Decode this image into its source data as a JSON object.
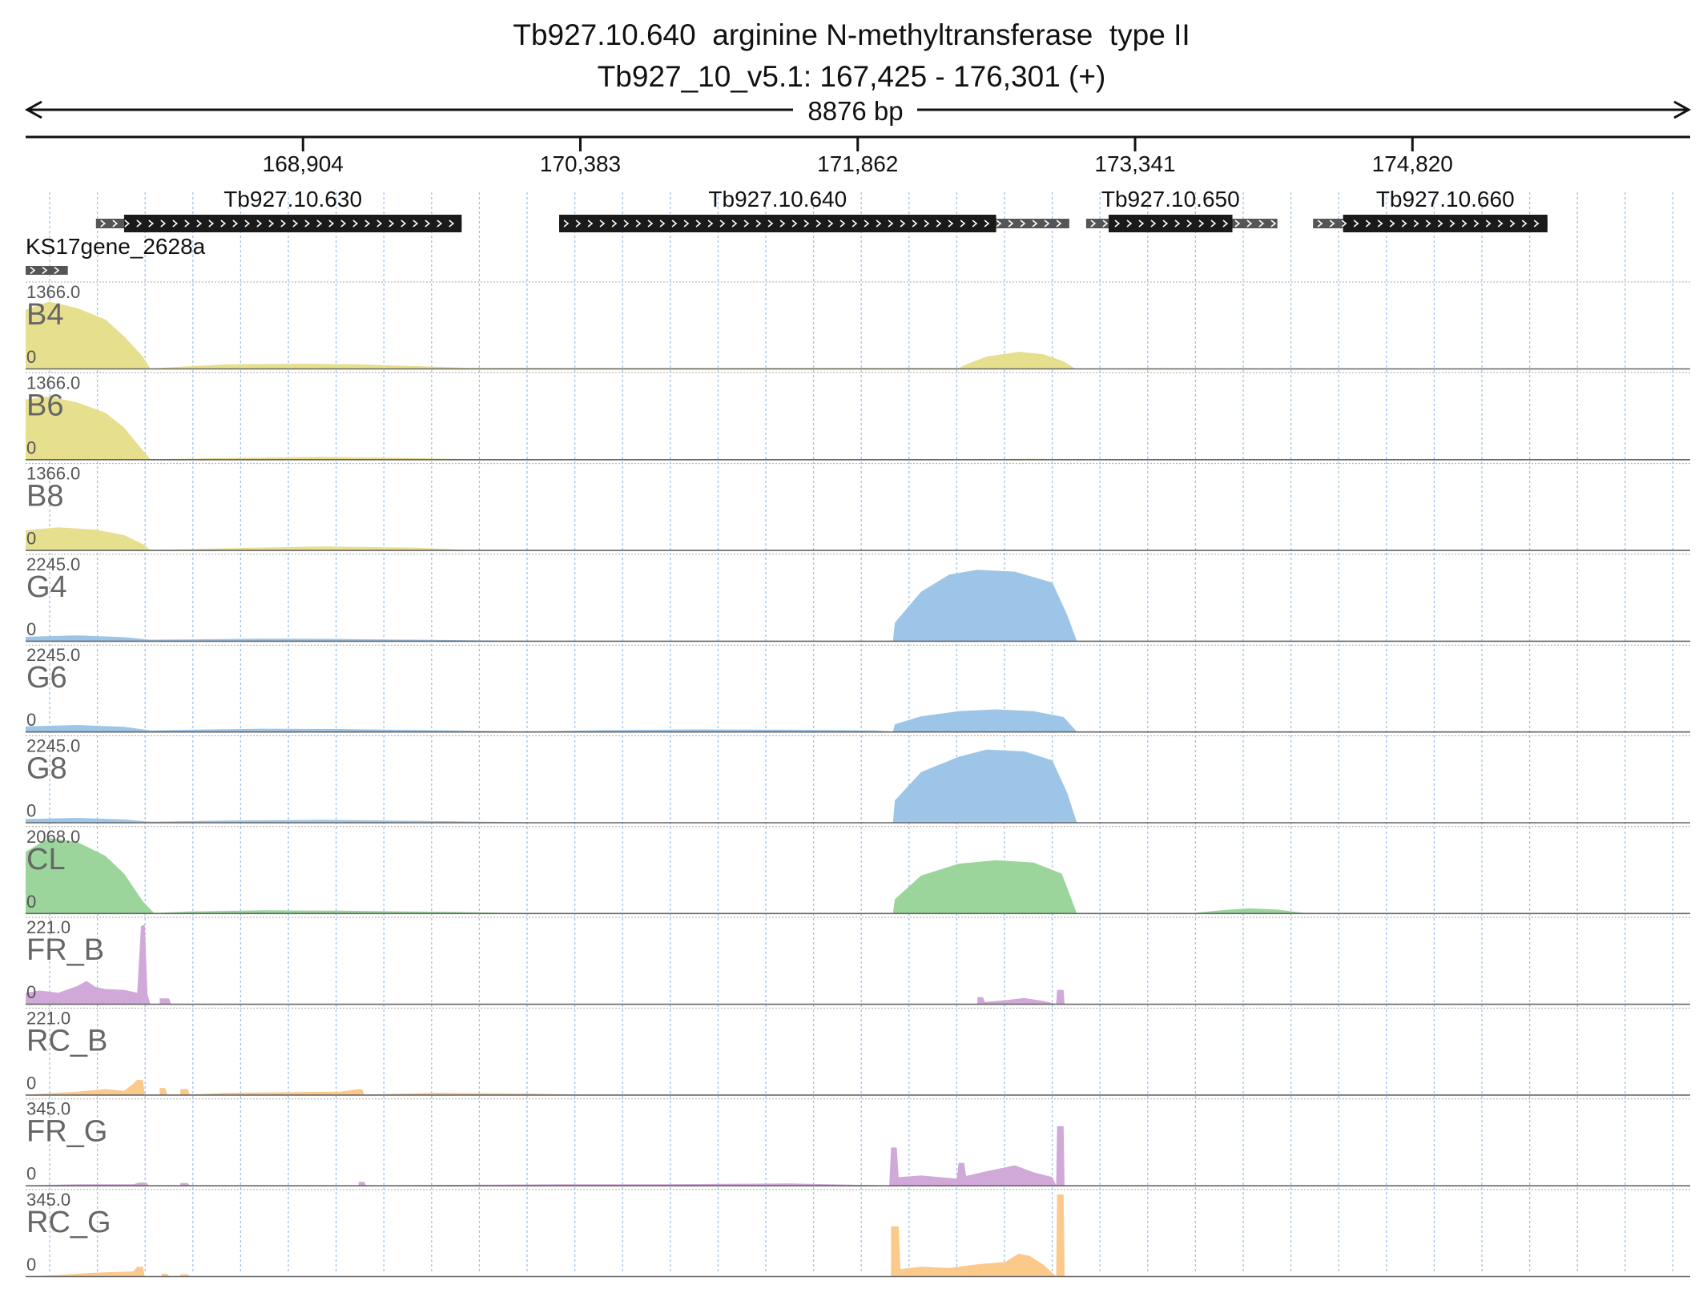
{
  "header": {
    "title": "Tb927.10.640  arginine N-methyltransferase  type II",
    "locus": "Tb927_10_v5.1: 167,425 - 176,301 (+)"
  },
  "chart_data": {
    "type": "area",
    "region": {
      "chrom": "Tb927_10_v5.1",
      "start": 167425,
      "end": 176301,
      "strand": "+",
      "span_label": "8876 bp"
    },
    "ruler": {
      "ticks": [
        168904,
        170383,
        171862,
        173341,
        174820
      ],
      "tick_labels": [
        "168,904",
        "170,383",
        "171,862",
        "173,341",
        "174,820"
      ]
    },
    "genes": [
      {
        "name": "KS17gene_2628a",
        "start": 167425,
        "end": 167650,
        "cds": null
      },
      {
        "name": "Tb927.10.630",
        "start": 167800,
        "end": 169750,
        "cds": [
          167950,
          169750
        ]
      },
      {
        "name": "Tb927.10.640",
        "start": 170270,
        "end": 172990,
        "cds": [
          170270,
          172600
        ]
      },
      {
        "name": "Tb927.10.650",
        "start": 173080,
        "end": 174100,
        "cds": [
          173200,
          173860
        ]
      },
      {
        "name": "Tb927.10.660",
        "start": 174290,
        "end": 175540,
        "cds": [
          174450,
          175540
        ]
      }
    ],
    "colors": {
      "B": "#e6df8e",
      "G": "#9dc5e8",
      "CL": "#9bd59b",
      "FR": "#d0a9d8",
      "RC": "#fbc98a",
      "gene": "#1a1a1a",
      "utr": "#555555",
      "grid": "#9fc4e6"
    },
    "tracks": [
      {
        "name": "B4",
        "color": "#e6df8e",
        "max_label": "1366.0",
        "min_label": "0",
        "ymax": 1366,
        "points": [
          [
            167425,
            980
          ],
          [
            167550,
            1120
          ],
          [
            167700,
            1010
          ],
          [
            167850,
            820
          ],
          [
            167950,
            540
          ],
          [
            168050,
            200
          ],
          [
            168090,
            0
          ],
          [
            168250,
            30
          ],
          [
            168500,
            70
          ],
          [
            168900,
            80
          ],
          [
            169200,
            70
          ],
          [
            169500,
            40
          ],
          [
            169800,
            10
          ],
          [
            172400,
            10
          ],
          [
            172450,
            80
          ],
          [
            172550,
            200
          ],
          [
            172720,
            280
          ],
          [
            172850,
            240
          ],
          [
            172960,
            120
          ],
          [
            173020,
            0
          ],
          [
            173500,
            5
          ],
          [
            173800,
            0
          ]
        ]
      },
      {
        "name": "B6",
        "color": "#e6df8e",
        "max_label": "1366.0",
        "min_label": "0",
        "ymax": 1366,
        "points": [
          [
            167425,
            1000
          ],
          [
            167550,
            1050
          ],
          [
            167700,
            950
          ],
          [
            167850,
            780
          ],
          [
            167950,
            530
          ],
          [
            168050,
            150
          ],
          [
            168090,
            0
          ],
          [
            168500,
            20
          ],
          [
            169000,
            40
          ],
          [
            169500,
            20
          ],
          [
            169800,
            0
          ],
          [
            172500,
            0
          ],
          [
            172800,
            10
          ],
          [
            173000,
            0
          ]
        ]
      },
      {
        "name": "B8",
        "color": "#e6df8e",
        "max_label": "1366.0",
        "min_label": "0",
        "ymax": 1366,
        "points": [
          [
            167425,
            330
          ],
          [
            167600,
            380
          ],
          [
            167800,
            340
          ],
          [
            167950,
            250
          ],
          [
            168050,
            100
          ],
          [
            168090,
            0
          ],
          [
            168500,
            30
          ],
          [
            169000,
            60
          ],
          [
            169500,
            40
          ],
          [
            169800,
            0
          ]
        ]
      },
      {
        "name": "G4",
        "color": "#9dc5e8",
        "max_label": "2245.0",
        "min_label": "0",
        "ymax": 2245,
        "points": [
          [
            167425,
            110
          ],
          [
            167700,
            150
          ],
          [
            167950,
            100
          ],
          [
            168090,
            30
          ],
          [
            168300,
            40
          ],
          [
            168700,
            60
          ],
          [
            169100,
            50
          ],
          [
            169700,
            20
          ],
          [
            170100,
            0
          ],
          [
            172050,
            0
          ],
          [
            172060,
            500
          ],
          [
            172200,
            1350
          ],
          [
            172350,
            1820
          ],
          [
            172500,
            1950
          ],
          [
            172700,
            1900
          ],
          [
            172900,
            1600
          ],
          [
            172980,
            700
          ],
          [
            173030,
            0
          ]
        ]
      },
      {
        "name": "G6",
        "color": "#9dc5e8",
        "max_label": "2245.0",
        "min_label": "0",
        "ymax": 2245,
        "points": [
          [
            167425,
            140
          ],
          [
            167700,
            180
          ],
          [
            167950,
            130
          ],
          [
            168090,
            30
          ],
          [
            168300,
            50
          ],
          [
            168700,
            80
          ],
          [
            169100,
            70
          ],
          [
            169700,
            30
          ],
          [
            170100,
            0
          ],
          [
            170500,
            40
          ],
          [
            171000,
            60
          ],
          [
            171500,
            50
          ],
          [
            171950,
            30
          ],
          [
            172050,
            0
          ],
          [
            172060,
            200
          ],
          [
            172200,
            420
          ],
          [
            172400,
            560
          ],
          [
            172600,
            610
          ],
          [
            172800,
            560
          ],
          [
            172960,
            400
          ],
          [
            173030,
            0
          ]
        ]
      },
      {
        "name": "G8",
        "color": "#9dc5e8",
        "max_label": "2245.0",
        "min_label": "0",
        "ymax": 2245,
        "points": [
          [
            167425,
            90
          ],
          [
            167700,
            120
          ],
          [
            167950,
            80
          ],
          [
            168090,
            20
          ],
          [
            168500,
            50
          ],
          [
            169000,
            70
          ],
          [
            169700,
            30
          ],
          [
            170100,
            0
          ],
          [
            172050,
            0
          ],
          [
            172060,
            600
          ],
          [
            172200,
            1380
          ],
          [
            172400,
            1800
          ],
          [
            172550,
            2000
          ],
          [
            172750,
            1950
          ],
          [
            172900,
            1700
          ],
          [
            172980,
            800
          ],
          [
            173030,
            0
          ]
        ]
      },
      {
        "name": "CL",
        "color": "#9bd59b",
        "max_label": "2068.0",
        "min_label": "0",
        "ymax": 2068,
        "points": [
          [
            167425,
            1550
          ],
          [
            167550,
            1900
          ],
          [
            167700,
            1800
          ],
          [
            167850,
            1450
          ],
          [
            167950,
            1000
          ],
          [
            168050,
            300
          ],
          [
            168110,
            0
          ],
          [
            168300,
            40
          ],
          [
            168700,
            70
          ],
          [
            169100,
            60
          ],
          [
            169700,
            30
          ],
          [
            170100,
            0
          ],
          [
            172050,
            0
          ],
          [
            172060,
            350
          ],
          [
            172200,
            950
          ],
          [
            172400,
            1250
          ],
          [
            172600,
            1340
          ],
          [
            172800,
            1280
          ],
          [
            172950,
            1000
          ],
          [
            173030,
            0
          ],
          [
            173650,
            0
          ],
          [
            173800,
            70
          ],
          [
            173950,
            120
          ],
          [
            174100,
            90
          ],
          [
            174250,
            0
          ]
        ]
      },
      {
        "name": "FR_B",
        "color": "#d0a9d8",
        "max_label": "221.0",
        "min_label": "0",
        "ymax": 221,
        "points": [
          [
            167425,
            30
          ],
          [
            167500,
            36
          ],
          [
            167600,
            30
          ],
          [
            167700,
            48
          ],
          [
            167750,
            62
          ],
          [
            167800,
            45
          ],
          [
            167850,
            40
          ],
          [
            167950,
            38
          ],
          [
            168020,
            30
          ],
          [
            168040,
            210
          ],
          [
            168060,
            215
          ],
          [
            168075,
            25
          ],
          [
            168090,
            0
          ],
          [
            168140,
            0
          ],
          [
            168140,
            15
          ],
          [
            168190,
            15
          ],
          [
            168200,
            0
          ],
          [
            172500,
            0
          ],
          [
            172500,
            18
          ],
          [
            172530,
            18
          ],
          [
            172540,
            5
          ],
          [
            172650,
            10
          ],
          [
            172750,
            16
          ],
          [
            172850,
            8
          ],
          [
            172920,
            0
          ],
          [
            172925,
            38
          ],
          [
            172960,
            38
          ],
          [
            172965,
            0
          ]
        ]
      },
      {
        "name": "RC_B",
        "color": "#fbc98a",
        "max_label": "221.0",
        "min_label": "0",
        "ymax": 221,
        "points": [
          [
            167425,
            0
          ],
          [
            167700,
            8
          ],
          [
            167850,
            15
          ],
          [
            167950,
            10
          ],
          [
            168000,
            30
          ],
          [
            168020,
            40
          ],
          [
            168050,
            40
          ],
          [
            168060,
            0
          ],
          [
            168140,
            0
          ],
          [
            168140,
            18
          ],
          [
            168170,
            18
          ],
          [
            168180,
            0
          ],
          [
            168250,
            0
          ],
          [
            168250,
            15
          ],
          [
            168290,
            15
          ],
          [
            168300,
            0
          ],
          [
            168500,
            5
          ],
          [
            169100,
            8
          ],
          [
            169200,
            15
          ],
          [
            169220,
            15
          ],
          [
            169230,
            0
          ],
          [
            169600,
            5
          ],
          [
            170100,
            3
          ],
          [
            170400,
            0
          ]
        ]
      },
      {
        "name": "FR_G",
        "color": "#d0a9d8",
        "max_label": "345.0",
        "min_label": "0",
        "ymax": 345,
        "points": [
          [
            167425,
            0
          ],
          [
            167700,
            5
          ],
          [
            168000,
            5
          ],
          [
            168030,
            12
          ],
          [
            168070,
            12
          ],
          [
            168080,
            0
          ],
          [
            168250,
            0
          ],
          [
            168250,
            10
          ],
          [
            168290,
            10
          ],
          [
            168300,
            0
          ],
          [
            169200,
            0
          ],
          [
            169200,
            15
          ],
          [
            169230,
            15
          ],
          [
            169240,
            0
          ],
          [
            170300,
            5
          ],
          [
            170800,
            5
          ],
          [
            171500,
            8
          ],
          [
            172030,
            0
          ],
          [
            172040,
            160
          ],
          [
            172070,
            160
          ],
          [
            172080,
            35
          ],
          [
            172200,
            42
          ],
          [
            172300,
            35
          ],
          [
            172390,
            28
          ],
          [
            172400,
            95
          ],
          [
            172430,
            95
          ],
          [
            172440,
            40
          ],
          [
            172550,
            60
          ],
          [
            172700,
            85
          ],
          [
            172800,
            55
          ],
          [
            172900,
            35
          ],
          [
            172920,
            0
          ],
          [
            172925,
            250
          ],
          [
            172960,
            250
          ],
          [
            172965,
            0
          ]
        ]
      },
      {
        "name": "RC_G",
        "color": "#fbc98a",
        "max_label": "345.0",
        "min_label": "0",
        "ymax": 345,
        "points": [
          [
            167425,
            0
          ],
          [
            167600,
            5
          ],
          [
            167800,
            15
          ],
          [
            168000,
            20
          ],
          [
            168020,
            40
          ],
          [
            168050,
            40
          ],
          [
            168060,
            0
          ],
          [
            168150,
            0
          ],
          [
            168150,
            10
          ],
          [
            168180,
            10
          ],
          [
            168190,
            0
          ],
          [
            168250,
            0
          ],
          [
            168250,
            8
          ],
          [
            168290,
            8
          ],
          [
            168300,
            0
          ],
          [
            172040,
            0
          ],
          [
            172040,
            210
          ],
          [
            172080,
            210
          ],
          [
            172090,
            30
          ],
          [
            172200,
            40
          ],
          [
            172350,
            35
          ],
          [
            172500,
            50
          ],
          [
            172650,
            60
          ],
          [
            172720,
            95
          ],
          [
            172780,
            85
          ],
          [
            172850,
            50
          ],
          [
            172920,
            0
          ],
          [
            172925,
            345
          ],
          [
            172960,
            345
          ],
          [
            172965,
            0
          ]
        ]
      }
    ]
  }
}
